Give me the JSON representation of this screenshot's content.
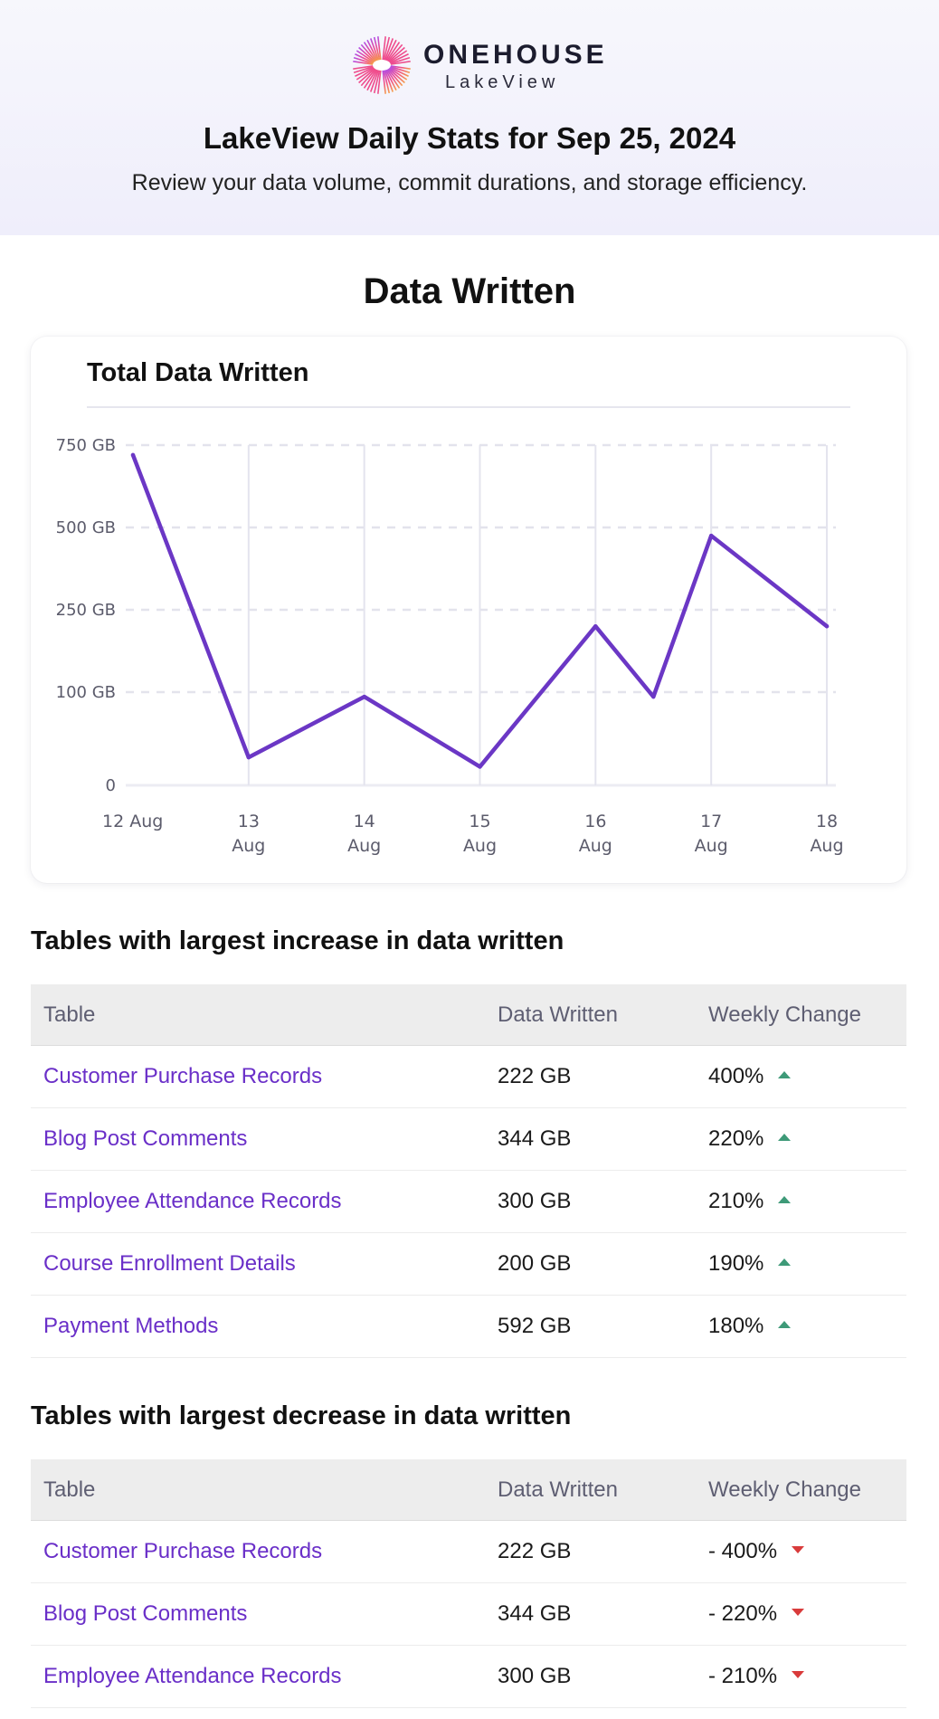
{
  "header": {
    "brand_name": "ONEHOUSE",
    "brand_sub": "LakeView",
    "title": "LakeView Daily Stats for Sep 25, 2024",
    "subtitle": "Review your data volume, commit durations, and storage efficiency."
  },
  "section": {
    "title": "Data Written"
  },
  "card": {
    "title": "Total Data Written"
  },
  "colors": {
    "accent": "#6a2fc8",
    "line": "#6b37c5",
    "up": "#3e9a78",
    "down": "#d93b3b"
  },
  "chart_data": {
    "type": "line",
    "title": "Total Data Written",
    "y_tick_labels": [
      "750 GB",
      "500 GB",
      "250 GB",
      "100 GB",
      "0"
    ],
    "y_tick_values": [
      750,
      500,
      250,
      100,
      0
    ],
    "x_tick_labels": [
      [
        "12 Aug"
      ],
      [
        "13",
        "Aug"
      ],
      [
        "14",
        "Aug"
      ],
      [
        "15",
        "Aug"
      ],
      [
        "16",
        "Aug"
      ],
      [
        "17",
        "Aug"
      ],
      [
        "18",
        "Aug"
      ]
    ],
    "x": [
      12.0,
      13.0,
      14.0,
      15.0,
      16.0,
      16.5,
      17.0,
      18.0
    ],
    "values": [
      720,
      30,
      95,
      20,
      220,
      95,
      475,
      220
    ],
    "grid": true
  },
  "increase": {
    "heading": "Tables with largest increase in data written",
    "columns": [
      "Table",
      "Data Written",
      "Weekly Change"
    ],
    "rows": [
      {
        "table": "Customer Purchase Records",
        "data": "222 GB",
        "change": "400%"
      },
      {
        "table": "Blog Post Comments",
        "data": "344 GB",
        "change": "220%"
      },
      {
        "table": "Employee Attendance Records",
        "data": "300 GB",
        "change": "210%"
      },
      {
        "table": "Course Enrollment Details",
        "data": "200 GB",
        "change": "190%"
      },
      {
        "table": "Payment Methods",
        "data": "592 GB",
        "change": "180%"
      }
    ]
  },
  "decrease": {
    "heading": "Tables with largest decrease in data written",
    "columns": [
      "Table",
      "Data Written",
      "Weekly Change"
    ],
    "rows": [
      {
        "table": "Customer Purchase Records",
        "data": "222 GB",
        "change": "- 400%"
      },
      {
        "table": "Blog Post Comments",
        "data": "344 GB",
        "change": "- 220%"
      },
      {
        "table": "Employee Attendance Records",
        "data": "300 GB",
        "change": "- 210%"
      }
    ]
  }
}
